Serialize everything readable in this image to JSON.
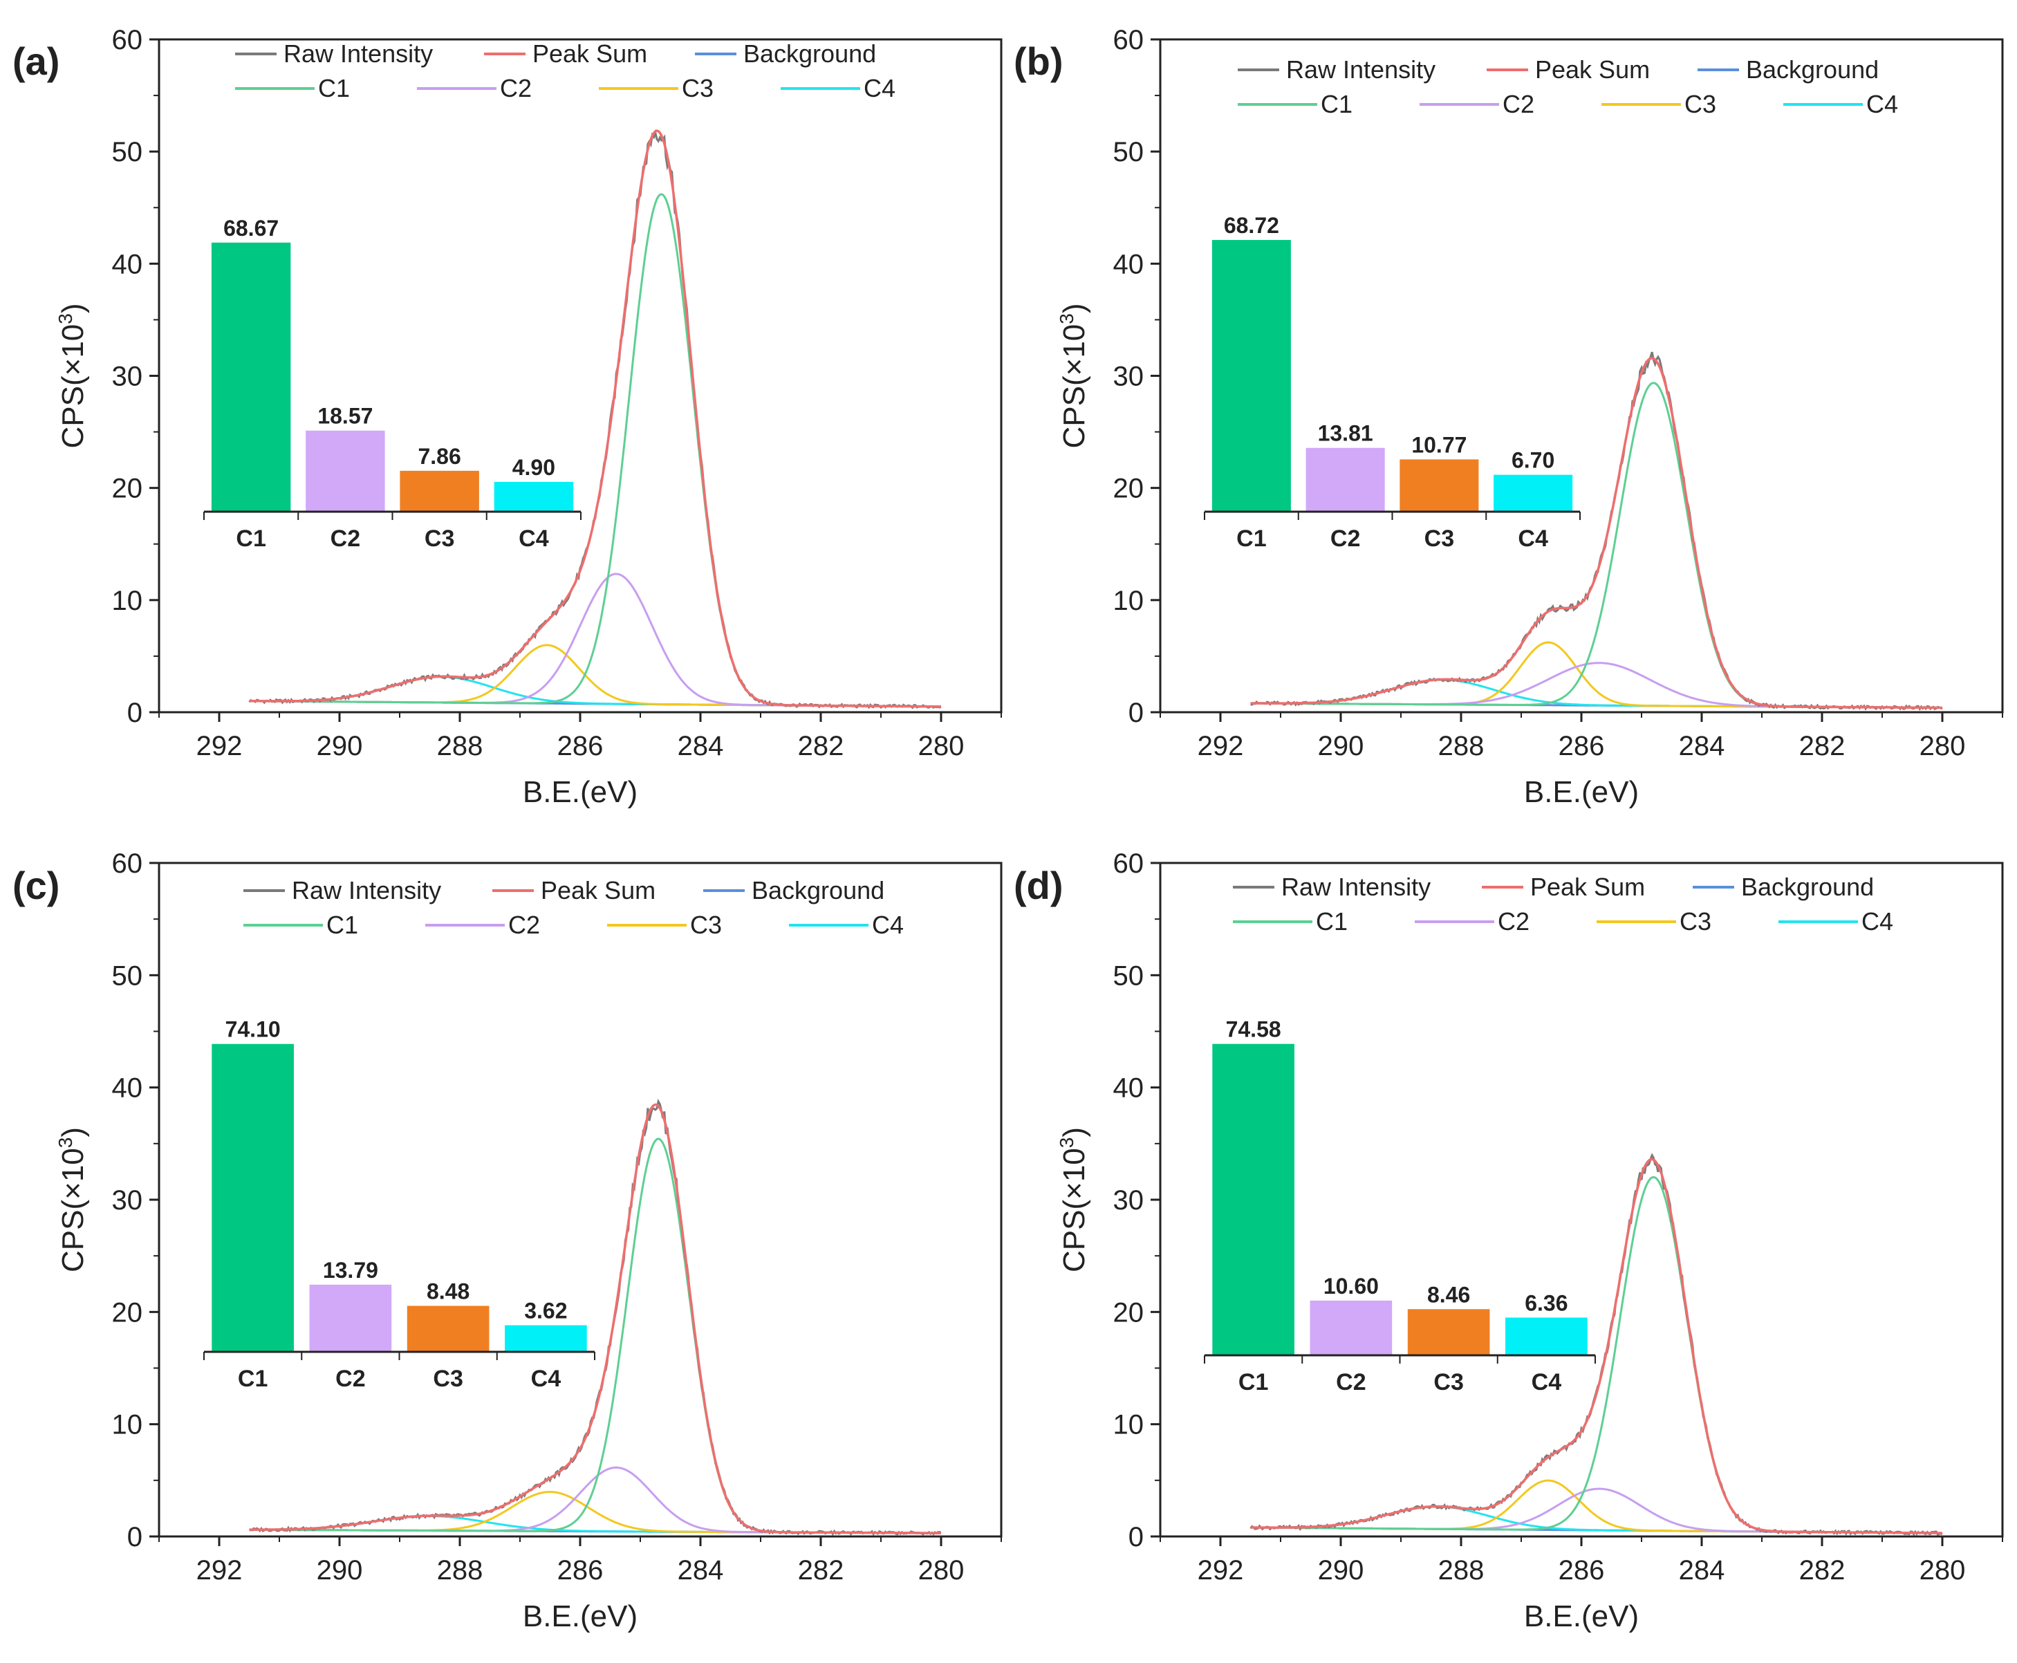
{
  "figure": {
    "legend_row1": [
      "Raw Intensity",
      "Peak Sum",
      "Background"
    ],
    "legend_row2": [
      "C1",
      "C2",
      "C3",
      "C4"
    ]
  },
  "colors": {
    "raw": "#7a7a7a",
    "sum": "#ee6e6e",
    "background": "#5b8fdd",
    "C1": "#5dcf93",
    "C2": "#c79ef0",
    "C3": "#f3c81f",
    "C4": "#22e4ee",
    "bar_C1": "#00c882",
    "bar_C2": "#d2a8f8",
    "bar_C3": "#f07f22",
    "bar_C4": "#00f0f8"
  },
  "chart_data": [
    {
      "type": "line",
      "panel": "(a)",
      "xlabel": "B.E.(eV)",
      "ylabel_prefix": "CPS(×10",
      "ylabel_exp": "3",
      "ylabel_suffix": ")",
      "xlim": [
        293,
        279
      ],
      "ylim": [
        0,
        60
      ],
      "xticks": [
        292,
        290,
        288,
        286,
        284,
        282,
        280
      ],
      "yticks": [
        0,
        10,
        20,
        30,
        40,
        50,
        60
      ],
      "x_range": [
        291.5,
        280
      ],
      "baseline": [
        1.0,
        0.5
      ],
      "peaks": [
        {
          "name": "C1",
          "center": 284.65,
          "fwhm": 1.25,
          "amplitude": 45.5
        },
        {
          "name": "C2",
          "center": 285.4,
          "fwhm": 1.4,
          "amplitude": 11.6
        },
        {
          "name": "C3",
          "center": 286.55,
          "fwhm": 1.25,
          "amplitude": 5.2
        },
        {
          "name": "C4",
          "center": 288.3,
          "fwhm": 2.0,
          "amplitude": 2.3
        }
      ],
      "inset": {
        "categories": [
          "C1",
          "C2",
          "C3",
          "C4"
        ],
        "values": [
          68.67,
          18.57,
          7.86,
          4.9
        ],
        "labels": [
          "68.67",
          "18.57",
          "7.86",
          "4.90"
        ]
      }
    },
    {
      "type": "line",
      "panel": "(b)",
      "xlabel": "B.E.(eV)",
      "ylabel_prefix": "CPS(×10",
      "ylabel_exp": "3",
      "ylabel_suffix": ")",
      "xlim": [
        293,
        279
      ],
      "ylim": [
        0,
        60
      ],
      "xticks": [
        292,
        290,
        288,
        286,
        284,
        282,
        280
      ],
      "yticks": [
        0,
        10,
        20,
        30,
        40,
        50,
        60
      ],
      "x_range": [
        291.5,
        280
      ],
      "baseline": [
        0.8,
        0.4
      ],
      "peaks": [
        {
          "name": "C1",
          "center": 284.8,
          "fwhm": 1.3,
          "amplitude": 28.8
        },
        {
          "name": "C2",
          "center": 285.7,
          "fwhm": 2.0,
          "amplitude": 3.8
        },
        {
          "name": "C3",
          "center": 286.55,
          "fwhm": 1.1,
          "amplitude": 5.6
        },
        {
          "name": "C4",
          "center": 288.3,
          "fwhm": 2.0,
          "amplitude": 2.2
        }
      ],
      "inset": {
        "categories": [
          "C1",
          "C2",
          "C3",
          "C4"
        ],
        "values": [
          68.72,
          13.81,
          10.77,
          6.7
        ],
        "labels": [
          "68.72",
          "13.81",
          "10.77",
          "6.70"
        ]
      }
    },
    {
      "type": "line",
      "panel": "(c)",
      "xlabel": "B.E.(eV)",
      "ylabel_prefix": "CPS(×10",
      "ylabel_exp": "3",
      "ylabel_suffix": ")",
      "xlim": [
        293,
        279
      ],
      "ylim": [
        0,
        60
      ],
      "xticks": [
        292,
        290,
        288,
        286,
        284,
        282,
        280
      ],
      "yticks": [
        0,
        10,
        20,
        30,
        40,
        50,
        60
      ],
      "x_range": [
        291.5,
        280
      ],
      "baseline": [
        0.6,
        0.3
      ],
      "peaks": [
        {
          "name": "C1",
          "center": 284.7,
          "fwhm": 1.2,
          "amplitude": 35.0
        },
        {
          "name": "C2",
          "center": 285.4,
          "fwhm": 1.4,
          "amplitude": 5.7
        },
        {
          "name": "C3",
          "center": 286.5,
          "fwhm": 1.5,
          "amplitude": 3.5
        },
        {
          "name": "C4",
          "center": 288.5,
          "fwhm": 2.2,
          "amplitude": 1.3
        }
      ],
      "inset": {
        "categories": [
          "C1",
          "C2",
          "C3",
          "C4"
        ],
        "values": [
          74.1,
          13.79,
          8.48,
          3.62
        ],
        "labels": [
          "74.10",
          "13.79",
          "8.48",
          "3.62"
        ]
      }
    },
    {
      "type": "line",
      "panel": "(d)",
      "xlabel": "B.E.(eV)",
      "ylabel_prefix": "CPS(×10",
      "ylabel_exp": "3",
      "ylabel_suffix": ")",
      "xlim": [
        293,
        279
      ],
      "ylim": [
        0,
        60
      ],
      "xticks": [
        292,
        290,
        288,
        286,
        284,
        282,
        280
      ],
      "yticks": [
        0,
        10,
        20,
        30,
        40,
        50,
        60
      ],
      "x_range": [
        291.5,
        280
      ],
      "baseline": [
        0.8,
        0.3
      ],
      "peaks": [
        {
          "name": "C1",
          "center": 284.8,
          "fwhm": 1.3,
          "amplitude": 31.5
        },
        {
          "name": "C2",
          "center": 285.7,
          "fwhm": 1.6,
          "amplitude": 3.7
        },
        {
          "name": "C3",
          "center": 286.55,
          "fwhm": 1.2,
          "amplitude": 4.4
        },
        {
          "name": "C4",
          "center": 288.4,
          "fwhm": 2.0,
          "amplitude": 2.0
        }
      ],
      "inset": {
        "categories": [
          "C1",
          "C2",
          "C3",
          "C4"
        ],
        "values": [
          74.58,
          10.6,
          8.46,
          6.36
        ],
        "labels": [
          "74.58",
          "10.60",
          "8.46",
          "6.36"
        ]
      }
    }
  ]
}
